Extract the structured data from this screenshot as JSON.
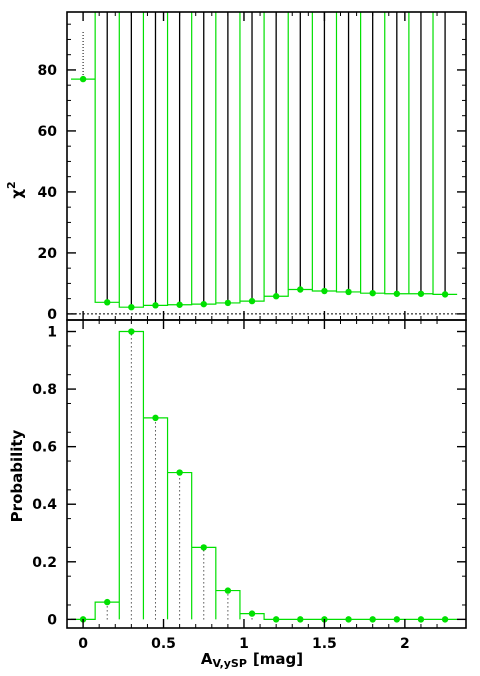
{
  "chart_data": [
    {
      "type": "scatter",
      "ylabel_main": "χ",
      "ylabel_sup": "2",
      "ylim": [
        -2,
        99
      ],
      "yticks": [
        0,
        20,
        40,
        60,
        80
      ],
      "reference_line": 0,
      "colors": {
        "green": "#00e000",
        "black": "#000000"
      },
      "x": [
        0,
        0.15,
        0.3,
        0.45,
        0.6,
        0.75,
        0.9,
        1.05,
        1.2,
        1.35,
        1.5,
        1.65,
        1.8,
        1.95,
        2.1,
        2.25
      ],
      "y": [
        77,
        3.8,
        2.2,
        2.8,
        3.0,
        3.2,
        3.6,
        4.2,
        5.8,
        8.0,
        7.5,
        7.2,
        6.8,
        6.6,
        6.6,
        6.4
      ]
    },
    {
      "type": "scatter",
      "ylabel": "Probability",
      "xlabel_main": "A",
      "xlabel_sub": "V,ySP",
      "xlabel_unit": "[mag]",
      "xlim": [
        -0.1,
        2.38
      ],
      "ylim": [
        -0.03,
        1.04
      ],
      "xticks": [
        "0",
        "0.5",
        "1",
        "1.5",
        "2"
      ],
      "xtick_values": [
        0,
        0.5,
        1,
        1.5,
        2
      ],
      "yticks": [
        0,
        0.2,
        0.4,
        0.6,
        0.8,
        1
      ],
      "x": [
        0,
        0.15,
        0.3,
        0.45,
        0.6,
        0.75,
        0.9,
        1.05,
        1.2,
        1.35,
        1.5,
        1.65,
        1.8,
        1.95,
        2.1,
        2.25
      ],
      "y": [
        0,
        0.06,
        1.0,
        0.7,
        0.51,
        0.25,
        0.1,
        0.02,
        0,
        0,
        0,
        0,
        0,
        0,
        0,
        0
      ]
    }
  ],
  "tick_text": {
    "top_y": [
      "0",
      "20",
      "40",
      "60",
      "80"
    ],
    "bottom_y": [
      "0",
      "0.2",
      "0.4",
      "0.6",
      "0.8",
      "1"
    ],
    "x": [
      "0",
      "0.5",
      "1",
      "1.5",
      "2"
    ]
  }
}
